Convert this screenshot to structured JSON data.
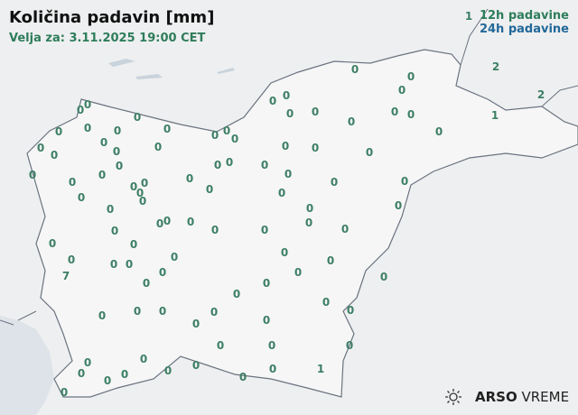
{
  "header": {
    "title": "Količina padavin [mm]",
    "valid_for": "Velja za: 3.11.2025 19:00 CET"
  },
  "legend": {
    "label_12h": "12h padavine",
    "label_24h": "24h padavine",
    "color_12h": "#2e7d5b",
    "color_24h": "#22689a"
  },
  "stations": {
    "values_mm": [
      0,
      0,
      2,
      2,
      1,
      1,
      0,
      0,
      0,
      0,
      0,
      0,
      0,
      0,
      0,
      0,
      0,
      0,
      0,
      0,
      0,
      0,
      0,
      0,
      0,
      0,
      0,
      0,
      0,
      0,
      0,
      0,
      0,
      0,
      0,
      0,
      0,
      0,
      0,
      0,
      0,
      0,
      0,
      0,
      0,
      0,
      0,
      0,
      0,
      0,
      0,
      0,
      0,
      0,
      0,
      0,
      0,
      0,
      0,
      0,
      0,
      0,
      0,
      0,
      0,
      0,
      0,
      0,
      0,
      0,
      7,
      0,
      0,
      0,
      0,
      0,
      0,
      0,
      0,
      0,
      0,
      0,
      0,
      0,
      0,
      0,
      0,
      0,
      0,
      0,
      0,
      0,
      0,
      0,
      0,
      0,
      0,
      0,
      1
    ]
  },
  "logo": {
    "brand": "ARSO",
    "product": "VREME",
    "icon": "sun-icon"
  }
}
